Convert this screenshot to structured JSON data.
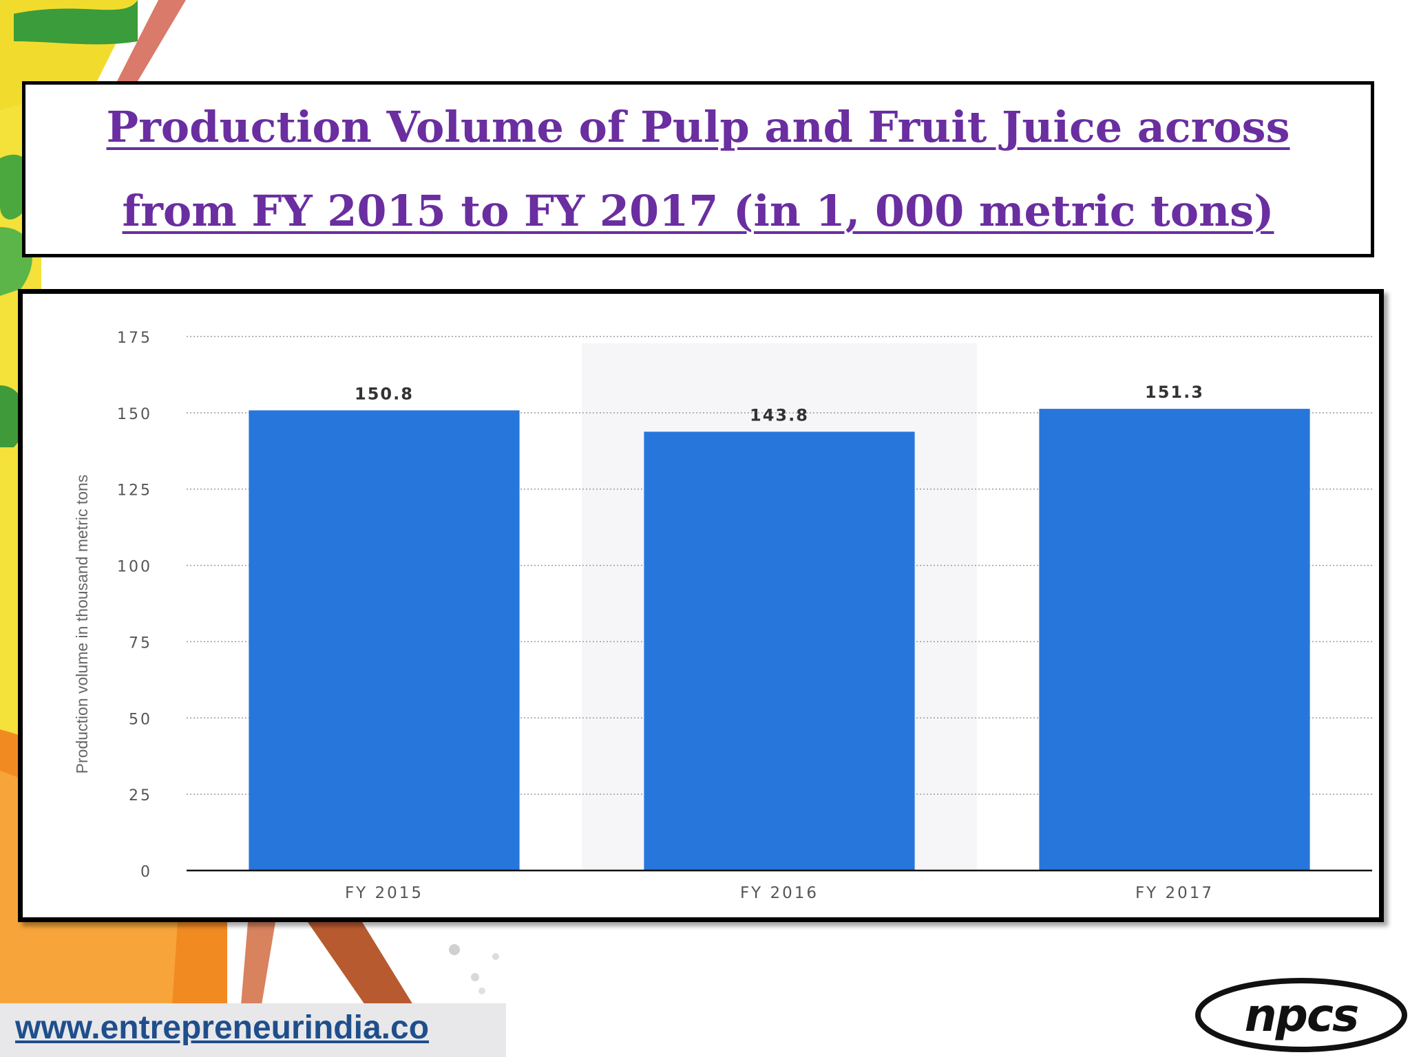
{
  "title": {
    "line1": "Production Volume of Pulp and Fruit Juice across",
    "line2": "from FY 2015 to FY 2017 (in 1, 000 metric tons)"
  },
  "chart_data": {
    "type": "bar",
    "categories": [
      "FY 2015",
      "FY 2016",
      "FY 2017"
    ],
    "values": [
      150.8,
      143.8,
      151.3
    ],
    "data_labels": [
      "150.8",
      "143.8",
      "151.3"
    ],
    "ylabel": "Production volume in thousand metric tons",
    "xlabel": "",
    "ylim": [
      0,
      175
    ],
    "yticks": [
      0,
      25,
      50,
      75,
      100,
      125,
      150,
      175
    ],
    "grid": true,
    "highlighted_category": "FY 2016",
    "bar_color": "#2776dc"
  },
  "footer": {
    "url": "www.entrepreneurindia.co"
  },
  "logo": {
    "text": "npcs"
  }
}
